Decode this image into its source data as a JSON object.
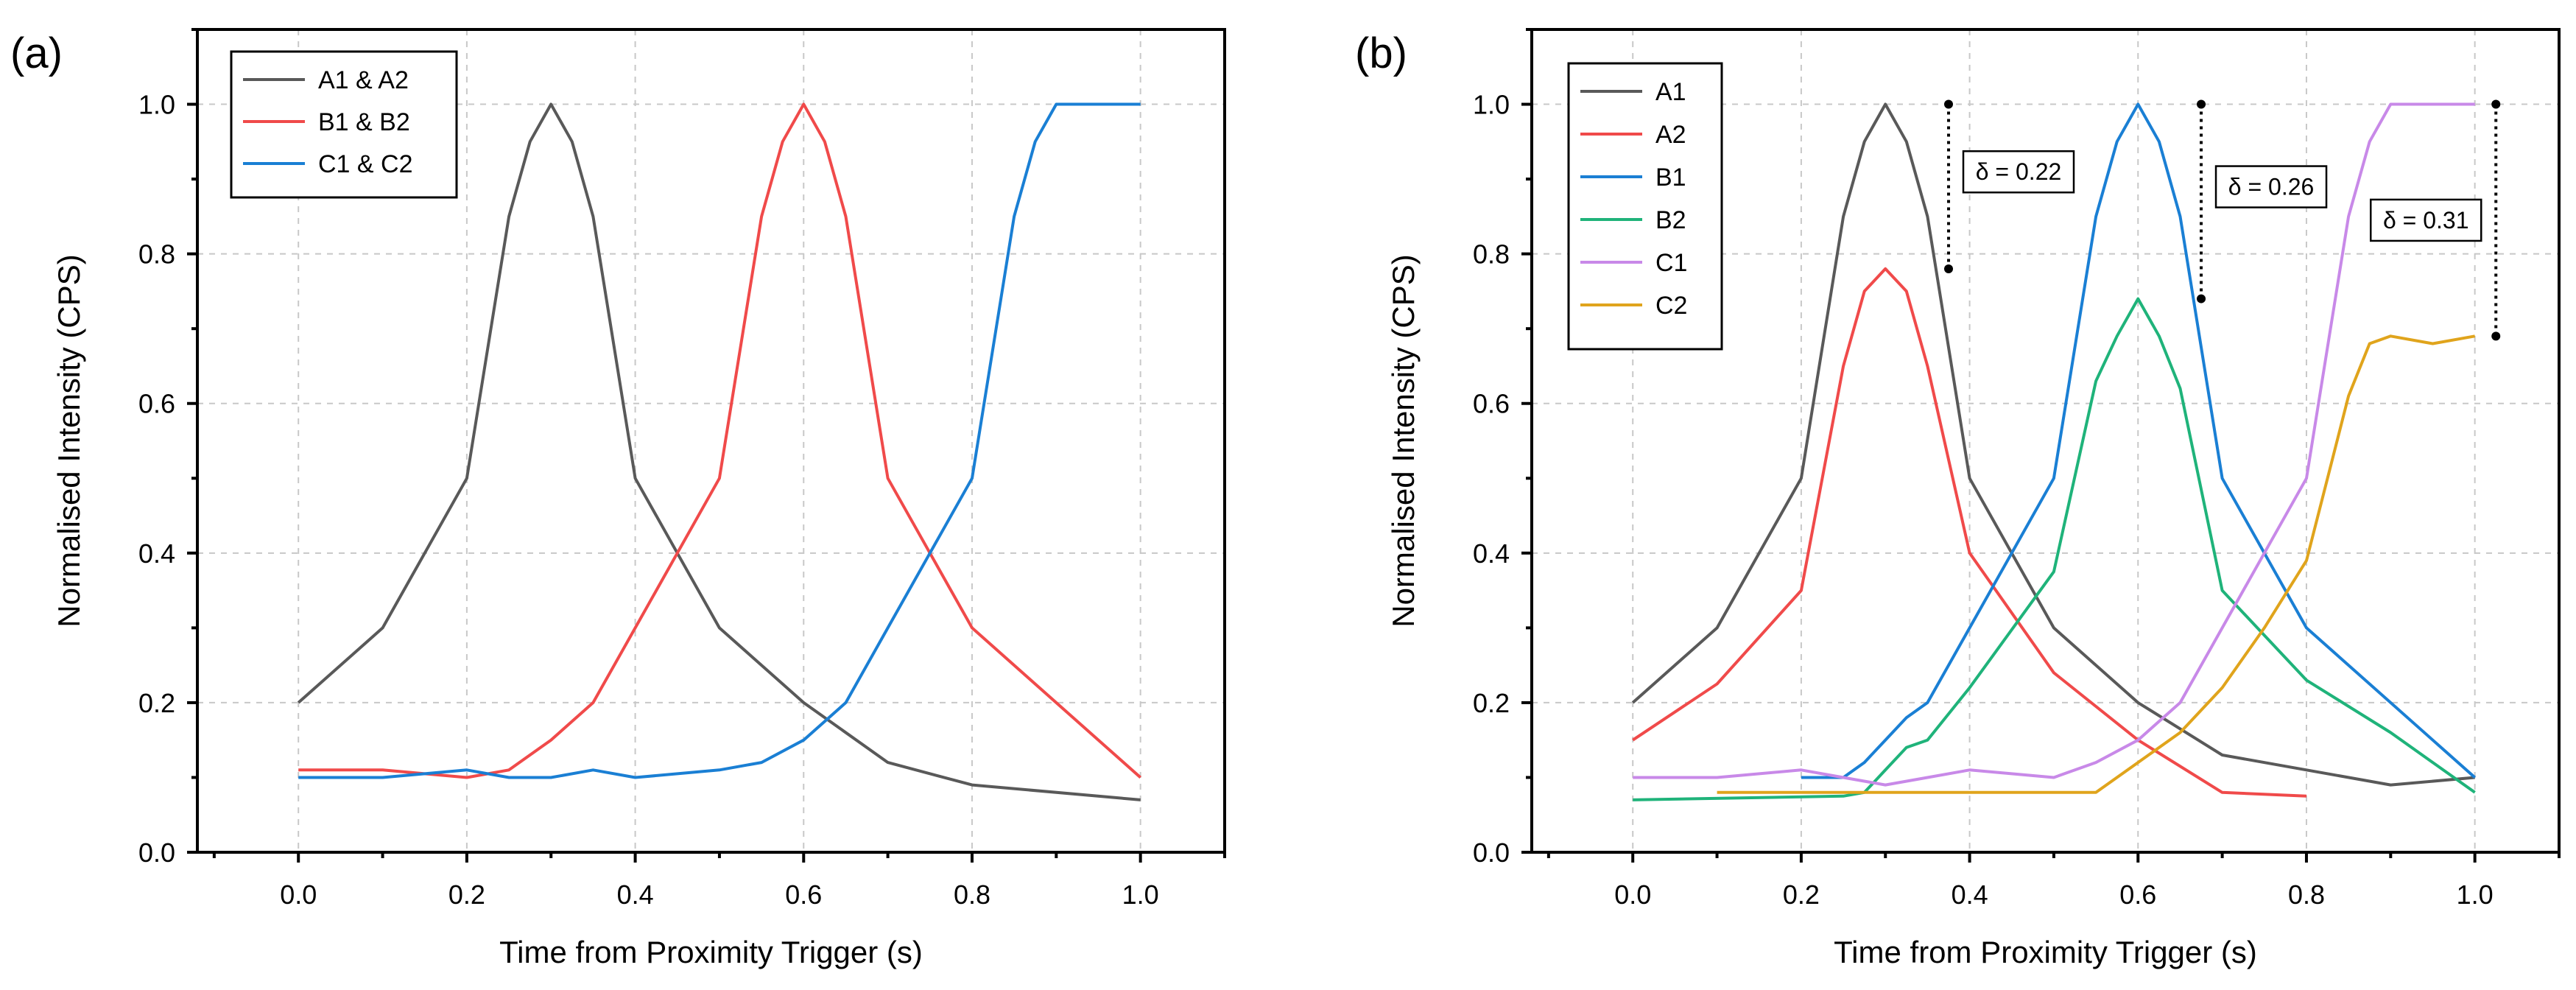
{
  "chart_data": [
    {
      "type": "line",
      "panel_label": "(a)",
      "xlabel": "Time from Proximity Trigger (s)",
      "ylabel": "Normalised Intensity (CPS)",
      "xlim": [
        -0.12,
        1.1
      ],
      "ylim": [
        0.0,
        1.1
      ],
      "xticks": [
        "0.0",
        "0.2",
        "0.4",
        "0.6",
        "0.8",
        "1.0"
      ],
      "yticks": [
        "0.0",
        "0.2",
        "0.4",
        "0.6",
        "0.8",
        "1.0"
      ],
      "grid": true,
      "legend_position": "top-left",
      "series": [
        {
          "name": "A1 & A2",
          "color": "#595959",
          "x": [
            0,
            0.1,
            0.2,
            0.25,
            0.275,
            0.3,
            0.325,
            0.35,
            0.4,
            0.5,
            0.6,
            0.7,
            0.8,
            1.0
          ],
          "y": [
            0.2,
            0.3,
            0.5,
            0.85,
            0.95,
            1.0,
            0.95,
            0.85,
            0.5,
            0.3,
            0.2,
            0.12,
            0.09,
            0.07
          ]
        },
        {
          "name": "B1 & B2",
          "color": "#f04a4a",
          "x": [
            0,
            0.1,
            0.2,
            0.25,
            0.3,
            0.35,
            0.4,
            0.5,
            0.55,
            0.575,
            0.6,
            0.625,
            0.65,
            0.7,
            0.8,
            1.0
          ],
          "y": [
            0.11,
            0.11,
            0.1,
            0.11,
            0.15,
            0.2,
            0.3,
            0.5,
            0.85,
            0.95,
            1.0,
            0.95,
            0.85,
            0.5,
            0.3,
            0.1
          ]
        },
        {
          "name": "C1 & C2",
          "color": "#1a7fd4",
          "x": [
            0,
            0.1,
            0.2,
            0.25,
            0.3,
            0.35,
            0.4,
            0.5,
            0.55,
            0.6,
            0.65,
            0.7,
            0.75,
            0.8,
            0.85,
            0.875,
            0.9,
            1.0
          ],
          "y": [
            0.1,
            0.1,
            0.11,
            0.1,
            0.1,
            0.11,
            0.1,
            0.11,
            0.12,
            0.15,
            0.2,
            0.3,
            0.4,
            0.5,
            0.85,
            0.95,
            1.0,
            1.0
          ]
        }
      ]
    },
    {
      "type": "line",
      "panel_label": "(b)",
      "xlabel": "Time from Proximity Trigger (s)",
      "ylabel": "Normalised Intensity (CPS)",
      "xlim": [
        -0.12,
        1.1
      ],
      "ylim": [
        0.0,
        1.1
      ],
      "xticks": [
        "0.0",
        "0.2",
        "0.4",
        "0.6",
        "0.8",
        "1.0"
      ],
      "yticks": [
        "0.0",
        "0.2",
        "0.4",
        "0.6",
        "0.8",
        "1.0"
      ],
      "grid": true,
      "legend_position": "top-left",
      "series": [
        {
          "name": "A1",
          "color": "#595959",
          "x": [
            0,
            0.1,
            0.2,
            0.25,
            0.275,
            0.3,
            0.325,
            0.35,
            0.4,
            0.5,
            0.6,
            0.7,
            0.8,
            0.9,
            1.0
          ],
          "y": [
            0.2,
            0.3,
            0.5,
            0.85,
            0.95,
            1.0,
            0.95,
            0.85,
            0.5,
            0.3,
            0.2,
            0.13,
            0.11,
            0.09,
            0.1
          ]
        },
        {
          "name": "A2",
          "color": "#f04a4a",
          "x": [
            0,
            0.1,
            0.2,
            0.25,
            0.275,
            0.3,
            0.325,
            0.35,
            0.4,
            0.5,
            0.6,
            0.7,
            0.8
          ],
          "y": [
            0.15,
            0.225,
            0.35,
            0.65,
            0.75,
            0.78,
            0.75,
            0.65,
            0.4,
            0.24,
            0.15,
            0.08,
            0.075
          ]
        },
        {
          "name": "B1",
          "color": "#1a7fd4",
          "x": [
            0.2,
            0.25,
            0.275,
            0.3,
            0.325,
            0.35,
            0.4,
            0.5,
            0.55,
            0.575,
            0.6,
            0.625,
            0.65,
            0.7,
            0.8,
            1.0
          ],
          "y": [
            0.1,
            0.1,
            0.12,
            0.15,
            0.18,
            0.2,
            0.3,
            0.5,
            0.85,
            0.95,
            1.0,
            0.95,
            0.85,
            0.5,
            0.3,
            0.1
          ]
        },
        {
          "name": "B2",
          "color": "#1fb37a",
          "x": [
            0,
            0.25,
            0.275,
            0.3,
            0.325,
            0.35,
            0.4,
            0.5,
            0.55,
            0.575,
            0.6,
            0.625,
            0.65,
            0.7,
            0.8,
            0.9,
            1.0
          ],
          "y": [
            0.07,
            0.075,
            0.08,
            0.11,
            0.14,
            0.15,
            0.22,
            0.375,
            0.63,
            0.69,
            0.74,
            0.69,
            0.62,
            0.35,
            0.23,
            0.16,
            0.08
          ]
        },
        {
          "name": "C1",
          "color": "#c889e8",
          "x": [
            0,
            0.1,
            0.2,
            0.25,
            0.3,
            0.35,
            0.4,
            0.5,
            0.55,
            0.6,
            0.65,
            0.7,
            0.75,
            0.8,
            0.85,
            0.875,
            0.9,
            1.0
          ],
          "y": [
            0.1,
            0.1,
            0.11,
            0.1,
            0.09,
            0.1,
            0.11,
            0.1,
            0.12,
            0.15,
            0.2,
            0.3,
            0.4,
            0.5,
            0.85,
            0.95,
            1.0,
            1.0
          ]
        },
        {
          "name": "C2",
          "color": "#e0a41c",
          "x": [
            0.1,
            0.2,
            0.3,
            0.4,
            0.5,
            0.55,
            0.6,
            0.65,
            0.7,
            0.75,
            0.8,
            0.825,
            0.85,
            0.875,
            0.9,
            0.95,
            1.0
          ],
          "y": [
            0.08,
            0.08,
            0.08,
            0.08,
            0.08,
            0.08,
            0.12,
            0.16,
            0.22,
            0.3,
            0.39,
            0.5,
            0.61,
            0.68,
            0.69,
            0.68,
            0.69
          ]
        }
      ],
      "annotations": [
        {
          "text": "δ = 0.22",
          "x": 0.375,
          "y_top": 1.0,
          "y_bottom": 0.78
        },
        {
          "text": "δ = 0.26",
          "x": 0.675,
          "y_top": 1.0,
          "y_bottom": 0.74
        },
        {
          "text": "δ = 0.31",
          "x": 1.025,
          "y_top": 1.0,
          "y_bottom": 0.69
        }
      ]
    }
  ]
}
